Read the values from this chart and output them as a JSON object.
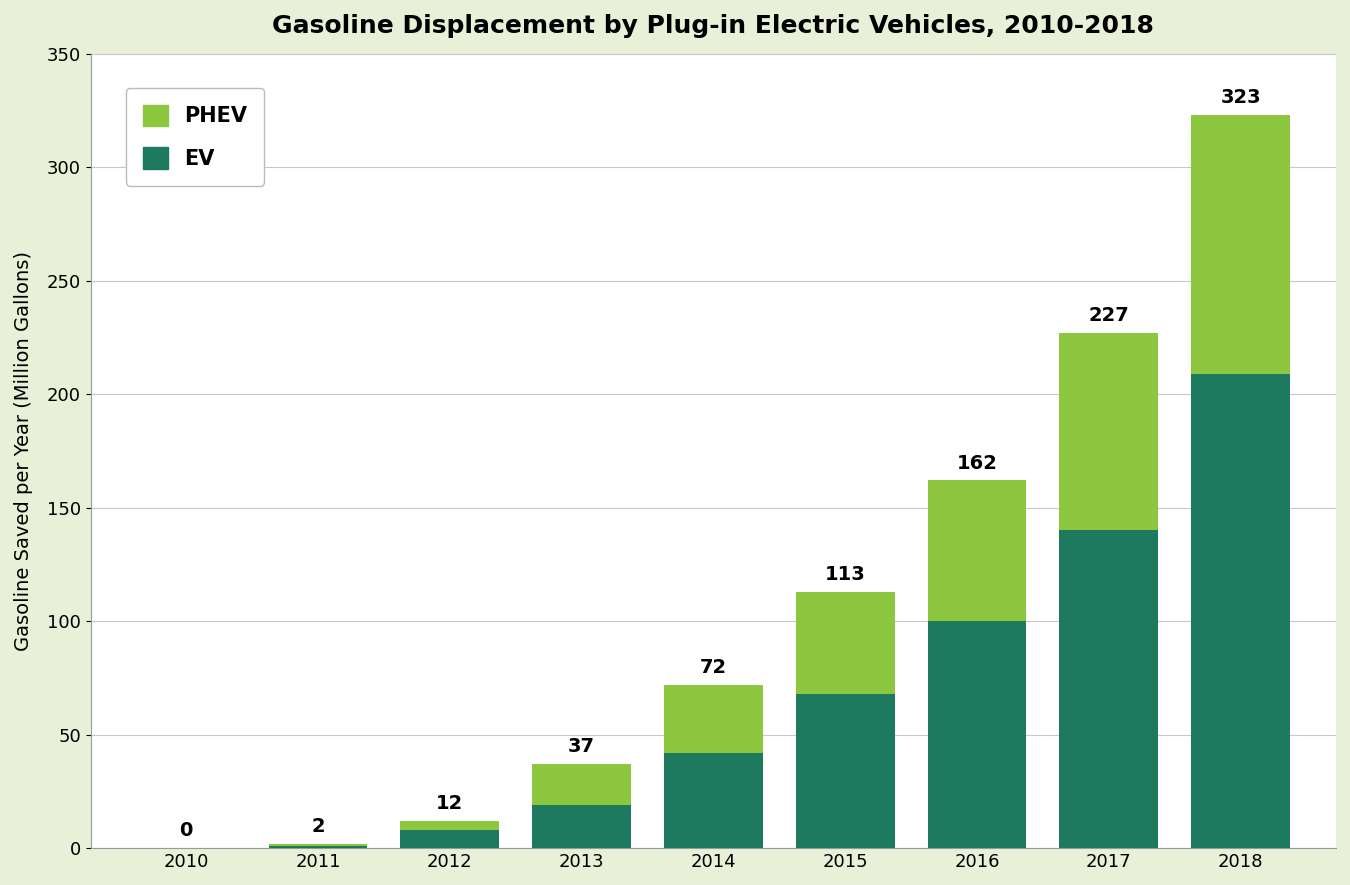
{
  "title": "Gasoline Displacement by Plug-in Electric Vehicles, 2010-2018",
  "ylabel": "Gasoline Saved per Year (Million Gallons)",
  "years": [
    "2010",
    "2011",
    "2012",
    "2013",
    "2014",
    "2015",
    "2016",
    "2017",
    "2018"
  ],
  "ev_values": [
    0,
    1,
    8,
    19,
    42,
    68,
    100,
    140,
    209
  ],
  "phev_values": [
    0,
    1,
    4,
    18,
    30,
    45,
    62,
    87,
    114
  ],
  "totals": [
    0,
    2,
    12,
    37,
    72,
    113,
    162,
    227,
    323
  ],
  "phev_color": "#8DC63F",
  "ev_color": "#1D7A5F",
  "background_outer": "#E8F0D8",
  "background_inner": "#FFFFFF",
  "ylim": [
    0,
    350
  ],
  "yticks": [
    0,
    50,
    100,
    150,
    200,
    250,
    300,
    350
  ],
  "title_fontsize": 18,
  "label_fontsize": 14,
  "tick_fontsize": 13,
  "legend_fontsize": 15,
  "annotation_fontsize": 14,
  "bar_width": 0.75,
  "legend_phev": "PHEV",
  "legend_ev": "EV"
}
